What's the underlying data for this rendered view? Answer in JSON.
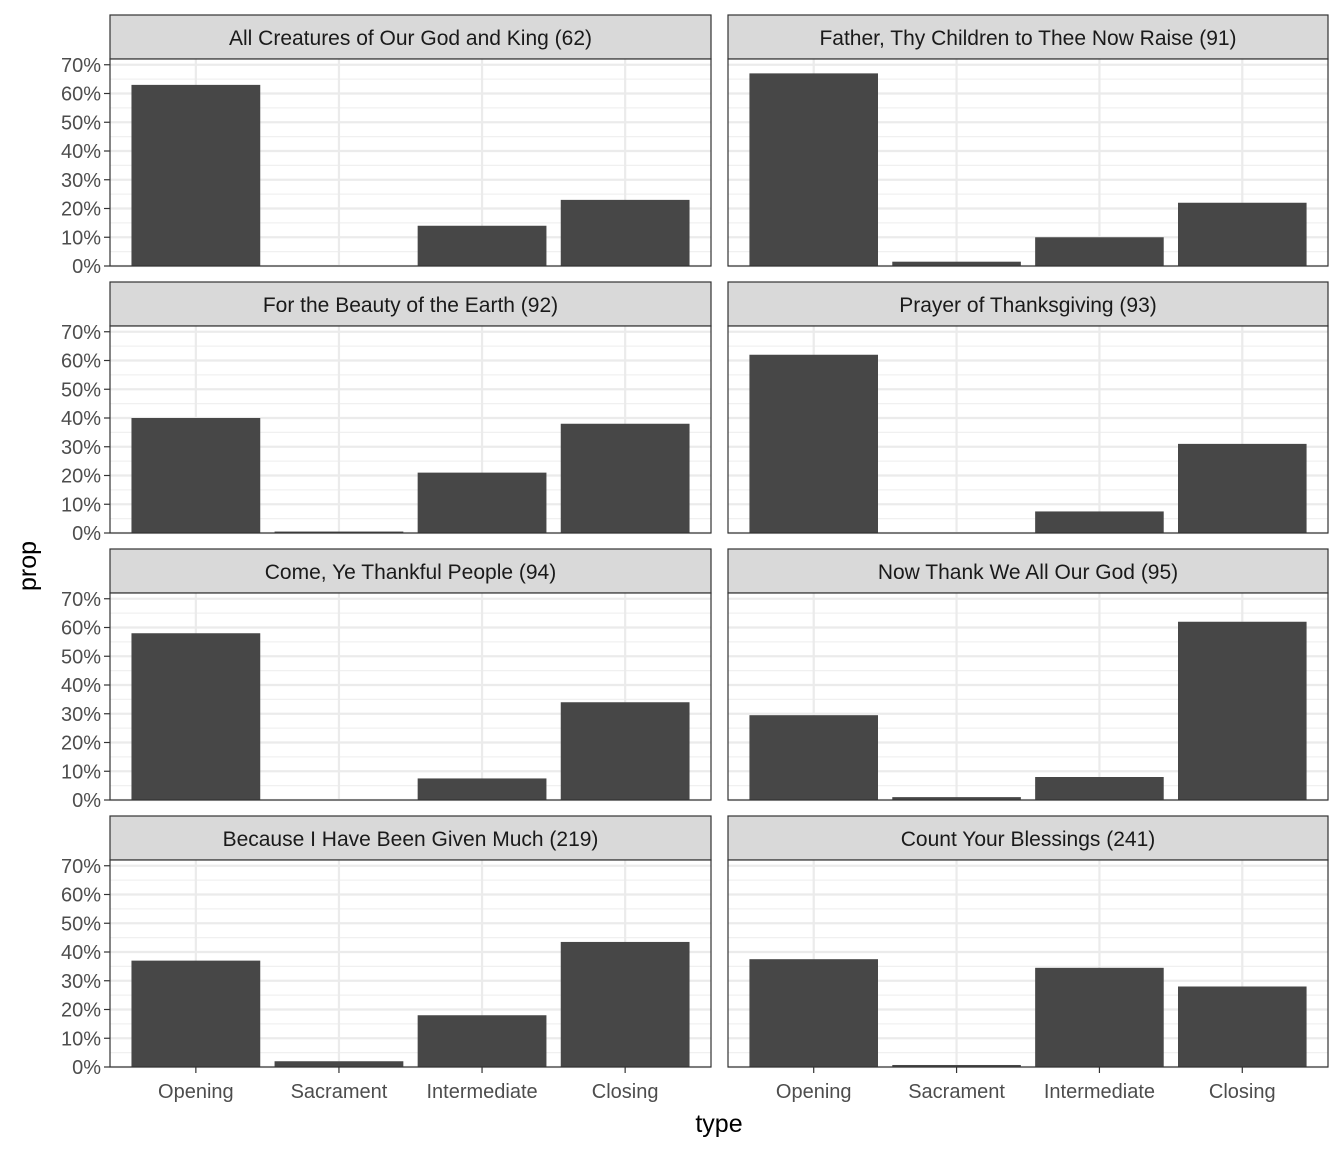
{
  "chart_data": {
    "type": "bar",
    "xlabel": "type",
    "ylabel": "prop",
    "ylim": [
      0,
      0.72
    ],
    "y_tick_labels": [
      "0%",
      "10%",
      "20%",
      "30%",
      "40%",
      "50%",
      "60%",
      "70%"
    ],
    "categories": [
      "Opening",
      "Sacrament",
      "Intermediate",
      "Closing"
    ],
    "grid": true,
    "facet_layout": "4 rows x 2 columns",
    "bar_color": "#474747",
    "strip_color": "#d9d9d9",
    "panels": [
      {
        "title": "All Creatures of Our God and King (62)",
        "values": [
          0.63,
          0.0,
          0.14,
          0.23
        ]
      },
      {
        "title": "Father, Thy Children to Thee Now Raise (91)",
        "values": [
          0.67,
          0.015,
          0.1,
          0.22
        ]
      },
      {
        "title": "For the Beauty of the Earth (92)",
        "values": [
          0.4,
          0.005,
          0.21,
          0.38
        ]
      },
      {
        "title": "Prayer of Thanksgiving (93)",
        "values": [
          0.62,
          0.0,
          0.075,
          0.31
        ]
      },
      {
        "title": "Come, Ye Thankful People (94)",
        "values": [
          0.58,
          0.0,
          0.075,
          0.34
        ]
      },
      {
        "title": "Now Thank We All Our God (95)",
        "values": [
          0.295,
          0.01,
          0.08,
          0.62
        ]
      },
      {
        "title": "Because I Have Been Given Much (219)",
        "values": [
          0.37,
          0.02,
          0.18,
          0.435
        ]
      },
      {
        "title": "Count Your Blessings (241)",
        "values": [
          0.375,
          0.007,
          0.345,
          0.28
        ]
      }
    ]
  }
}
